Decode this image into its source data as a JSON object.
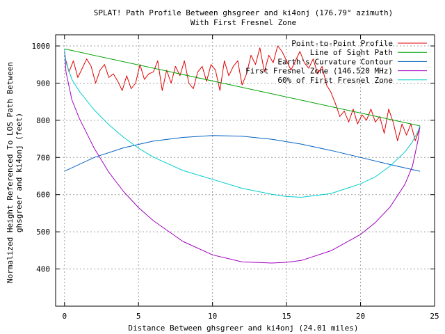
{
  "chart_data": {
    "type": "line",
    "title": "SPLAT! Path Profile Between ghsgreer and ki4onj (176.79° azimuth)",
    "subtitle": "With First Fresnel Zone",
    "xlabel": "Distance Between ghsgreer and ki4onj (24.01 miles)",
    "ylabel_line1": "Normalized Height Referenced To LOS Path Between",
    "ylabel_line2": "ghsgreer and ki4onj (feet)",
    "xlim": [
      -0.6,
      25
    ],
    "ylim": [
      300,
      1030
    ],
    "xticks": [
      0,
      5,
      10,
      15,
      20,
      25
    ],
    "yticks": [
      400,
      500,
      600,
      700,
      800,
      900,
      1000
    ],
    "grid": true,
    "legend_position": "top-right",
    "series": [
      {
        "name": "Point-to-Point Profile",
        "color": "#e00000",
        "x": [
          0,
          0.3,
          0.6,
          0.9,
          1.2,
          1.5,
          1.8,
          2.1,
          2.4,
          2.7,
          3.0,
          3.3,
          3.6,
          3.9,
          4.2,
          4.5,
          4.8,
          5.1,
          5.4,
          5.7,
          6.0,
          6.3,
          6.6,
          6.9,
          7.2,
          7.5,
          7.8,
          8.1,
          8.4,
          8.7,
          9.0,
          9.3,
          9.6,
          9.9,
          10.2,
          10.5,
          10.8,
          11.1,
          11.4,
          11.7,
          12.0,
          12.3,
          12.6,
          12.9,
          13.2,
          13.5,
          13.8,
          14.1,
          14.4,
          14.7,
          15.0,
          15.3,
          15.6,
          15.9,
          16.2,
          16.5,
          16.8,
          17.1,
          17.4,
          17.7,
          18.0,
          18.3,
          18.6,
          18.9,
          19.2,
          19.5,
          19.8,
          20.1,
          20.4,
          20.7,
          21.0,
          21.3,
          21.6,
          21.9,
          22.2,
          22.5,
          22.8,
          23.1,
          23.4,
          23.7,
          24.01
        ],
        "values": [
          975,
          930,
          960,
          915,
          940,
          965,
          945,
          900,
          935,
          950,
          915,
          925,
          905,
          880,
          920,
          885,
          900,
          950,
          910,
          925,
          930,
          960,
          880,
          935,
          900,
          945,
          920,
          960,
          900,
          885,
          930,
          945,
          905,
          950,
          935,
          880,
          960,
          920,
          945,
          960,
          895,
          925,
          975,
          950,
          995,
          930,
          975,
          955,
          1000,
          985,
          960,
          935,
          960,
          985,
          955,
          940,
          965,
          925,
          945,
          895,
          875,
          845,
          810,
          825,
          795,
          830,
          790,
          815,
          800,
          830,
          795,
          810,
          765,
          830,
          795,
          745,
          790,
          760,
          790,
          745,
          780
        ]
      },
      {
        "name": "Line of Sight Path",
        "color": "#00a000",
        "x": [
          0,
          24.01
        ],
        "values": [
          992,
          785
        ]
      },
      {
        "name": "Earth's Curvature Contour",
        "color": "#0060c0",
        "x": [
          0,
          2,
          4,
          6,
          8,
          10,
          12,
          14,
          16,
          18,
          20,
          22,
          24.01
        ],
        "values": [
          663,
          700,
          726,
          744,
          754,
          759,
          757,
          749,
          736,
          719,
          700,
          681,
          663
        ]
      },
      {
        "name": "First Fresnel Zone (146.520 MHz)",
        "color": "#a000c0",
        "x": [
          0,
          0.1,
          0.5,
          1,
          2,
          3,
          4,
          5,
          6,
          8,
          10,
          12,
          14,
          15,
          16,
          18,
          20,
          21,
          22,
          23,
          23.5,
          23.9,
          24.01
        ],
        "values": [
          992,
          930,
          855,
          805,
          725,
          660,
          608,
          565,
          530,
          474,
          438,
          419,
          416,
          418,
          423,
          449,
          493,
          525,
          567,
          628,
          676,
          750,
          785
        ]
      },
      {
        "name": "60% of First Fresnel Zone",
        "color": "#00cccc",
        "x": [
          0,
          0.1,
          0.5,
          1,
          2,
          3,
          4,
          5,
          6,
          8,
          10,
          12,
          14,
          15,
          16,
          18,
          20,
          21,
          22,
          23,
          23.5,
          23.9,
          24.01
        ],
        "values": [
          992,
          955,
          910,
          878,
          828,
          788,
          754,
          725,
          701,
          665,
          641,
          617,
          601,
          595,
          593,
          603,
          629,
          648,
          677,
          715,
          742,
          772,
          785
        ]
      }
    ]
  }
}
